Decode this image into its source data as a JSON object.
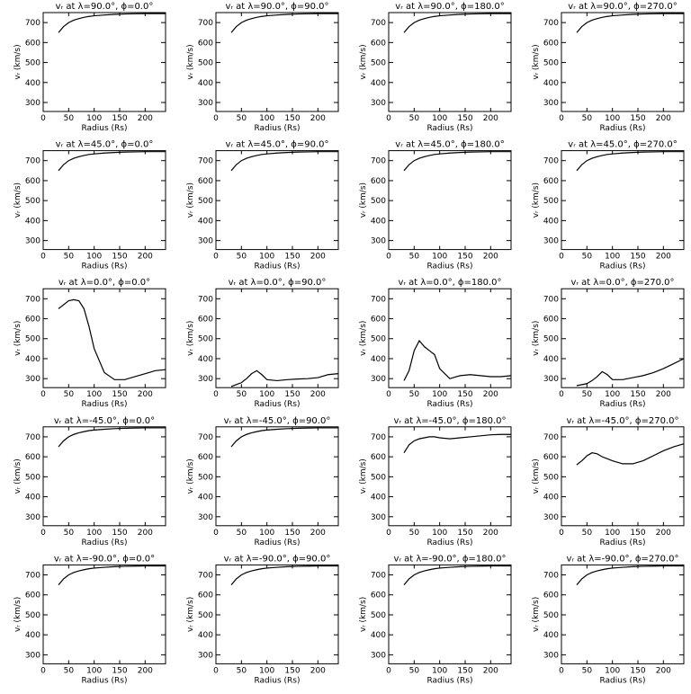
{
  "chart_data": [
    {
      "type": "line",
      "title": "vᵣ at λ=90.0°, ϕ=0.0°",
      "xlabel": "Radius (Rs)",
      "ylabel": "vᵣ (km/s)",
      "x": [
        30,
        40,
        50,
        60,
        70,
        80,
        90,
        100,
        120,
        140,
        160,
        180,
        200,
        220,
        240
      ],
      "values": [
        650,
        680,
        700,
        712,
        720,
        726,
        731,
        734,
        738,
        741,
        743,
        744,
        745,
        745,
        745
      ],
      "xlim": [
        0,
        240
      ],
      "ylim": [
        255,
        750
      ],
      "xticks": [
        0,
        50,
        100,
        150,
        200
      ],
      "yticks": [
        300,
        400,
        500,
        600,
        700
      ],
      "color": "#000000"
    },
    {
      "type": "line",
      "title": "vᵣ at λ=90.0°, ϕ=90.0°",
      "xlabel": "Radius (Rs)",
      "ylabel": "vᵣ (km/s)",
      "x": [
        30,
        40,
        50,
        60,
        70,
        80,
        90,
        100,
        120,
        140,
        160,
        180,
        200,
        220,
        240
      ],
      "values": [
        650,
        680,
        700,
        712,
        720,
        726,
        731,
        734,
        738,
        741,
        743,
        744,
        745,
        745,
        745
      ],
      "xlim": [
        0,
        240
      ],
      "ylim": [
        255,
        750
      ],
      "xticks": [
        0,
        50,
        100,
        150,
        200
      ],
      "yticks": [
        300,
        400,
        500,
        600,
        700
      ],
      "color": "#000000"
    },
    {
      "type": "line",
      "title": "vᵣ at λ=90.0°, ϕ=180.0°",
      "xlabel": "Radius (Rs)",
      "ylabel": "vᵣ (km/s)",
      "x": [
        30,
        40,
        50,
        60,
        70,
        80,
        90,
        100,
        120,
        140,
        160,
        180,
        200,
        220,
        240
      ],
      "values": [
        650,
        680,
        700,
        712,
        720,
        726,
        731,
        734,
        738,
        741,
        743,
        744,
        745,
        745,
        745
      ],
      "xlim": [
        0,
        240
      ],
      "ylim": [
        255,
        750
      ],
      "xticks": [
        0,
        50,
        100,
        150,
        200
      ],
      "yticks": [
        300,
        400,
        500,
        600,
        700
      ],
      "color": "#000000"
    },
    {
      "type": "line",
      "title": "vᵣ at λ=90.0°, ϕ=270.0°",
      "xlabel": "Radius (Rs)",
      "ylabel": "vᵣ (km/s)",
      "x": [
        30,
        40,
        50,
        60,
        70,
        80,
        90,
        100,
        120,
        140,
        160,
        180,
        200,
        220,
        240
      ],
      "values": [
        650,
        680,
        700,
        712,
        720,
        726,
        731,
        734,
        738,
        741,
        743,
        744,
        745,
        745,
        745
      ],
      "xlim": [
        0,
        240
      ],
      "ylim": [
        255,
        750
      ],
      "xticks": [
        0,
        50,
        100,
        150,
        200
      ],
      "yticks": [
        300,
        400,
        500,
        600,
        700
      ],
      "color": "#000000"
    },
    {
      "type": "line",
      "title": "vᵣ at λ=45.0°, ϕ=0.0°",
      "xlabel": "Radius (Rs)",
      "ylabel": "vᵣ (km/s)",
      "x": [
        30,
        40,
        50,
        60,
        70,
        80,
        90,
        100,
        120,
        140,
        160,
        180,
        200,
        220,
        240
      ],
      "values": [
        650,
        680,
        700,
        712,
        720,
        726,
        731,
        734,
        738,
        741,
        743,
        744,
        745,
        745,
        745
      ],
      "xlim": [
        0,
        240
      ],
      "ylim": [
        255,
        750
      ],
      "xticks": [
        0,
        50,
        100,
        150,
        200
      ],
      "yticks": [
        300,
        400,
        500,
        600,
        700
      ],
      "color": "#000000"
    },
    {
      "type": "line",
      "title": "vᵣ at λ=45.0°, ϕ=90.0°",
      "xlabel": "Radius (Rs)",
      "ylabel": "vᵣ (km/s)",
      "x": [
        30,
        40,
        50,
        60,
        70,
        80,
        90,
        100,
        120,
        140,
        160,
        180,
        200,
        220,
        240
      ],
      "values": [
        650,
        680,
        700,
        712,
        720,
        726,
        731,
        734,
        738,
        741,
        743,
        744,
        745,
        745,
        745
      ],
      "xlim": [
        0,
        240
      ],
      "ylim": [
        255,
        750
      ],
      "xticks": [
        0,
        50,
        100,
        150,
        200
      ],
      "yticks": [
        300,
        400,
        500,
        600,
        700
      ],
      "color": "#000000"
    },
    {
      "type": "line",
      "title": "vᵣ at λ=45.0°, ϕ=180.0°",
      "xlabel": "Radius (Rs)",
      "ylabel": "vᵣ (km/s)",
      "x": [
        30,
        40,
        50,
        60,
        70,
        80,
        90,
        100,
        120,
        140,
        160,
        180,
        200,
        220,
        240
      ],
      "values": [
        650,
        680,
        700,
        712,
        720,
        726,
        731,
        734,
        738,
        741,
        743,
        744,
        745,
        745,
        745
      ],
      "xlim": [
        0,
        240
      ],
      "ylim": [
        255,
        750
      ],
      "xticks": [
        0,
        50,
        100,
        150,
        200
      ],
      "yticks": [
        300,
        400,
        500,
        600,
        700
      ],
      "color": "#000000"
    },
    {
      "type": "line",
      "title": "vᵣ at λ=45.0°, ϕ=270.0°",
      "xlabel": "Radius (Rs)",
      "ylabel": "vᵣ (km/s)",
      "x": [
        30,
        40,
        50,
        60,
        70,
        80,
        90,
        100,
        120,
        140,
        160,
        180,
        200,
        220,
        240
      ],
      "values": [
        650,
        680,
        700,
        712,
        720,
        726,
        731,
        734,
        738,
        741,
        743,
        744,
        745,
        745,
        745
      ],
      "xlim": [
        0,
        240
      ],
      "ylim": [
        255,
        750
      ],
      "xticks": [
        0,
        50,
        100,
        150,
        200
      ],
      "yticks": [
        300,
        400,
        500,
        600,
        700
      ],
      "color": "#000000"
    },
    {
      "type": "line",
      "title": "vᵣ at λ=0.0°, ϕ=0.0°",
      "xlabel": "Radius (Rs)",
      "ylabel": "vᵣ (km/s)",
      "x": [
        30,
        40,
        50,
        60,
        70,
        80,
        90,
        100,
        120,
        140,
        160,
        180,
        200,
        220,
        240
      ],
      "values": [
        650,
        670,
        690,
        695,
        690,
        650,
        560,
        450,
        330,
        295,
        295,
        310,
        325,
        340,
        345
      ],
      "xlim": [
        0,
        240
      ],
      "ylim": [
        255,
        750
      ],
      "xticks": [
        0,
        50,
        100,
        150,
        200
      ],
      "yticks": [
        300,
        400,
        500,
        600,
        700
      ],
      "color": "#000000"
    },
    {
      "type": "line",
      "title": "vᵣ at λ=0.0°, ϕ=90.0°",
      "xlabel": "Radius (Rs)",
      "ylabel": "vᵣ (km/s)",
      "x": [
        30,
        40,
        50,
        60,
        70,
        80,
        90,
        100,
        120,
        140,
        160,
        180,
        200,
        220,
        240
      ],
      "values": [
        260,
        270,
        280,
        300,
        325,
        340,
        320,
        295,
        290,
        295,
        298,
        300,
        305,
        320,
        325
      ],
      "xlim": [
        0,
        240
      ],
      "ylim": [
        255,
        750
      ],
      "xticks": [
        0,
        50,
        100,
        150,
        200
      ],
      "yticks": [
        300,
        400,
        500,
        600,
        700
      ],
      "color": "#000000"
    },
    {
      "type": "line",
      "title": "vᵣ at λ=0.0°, ϕ=180.0°",
      "xlabel": "Radius (Rs)",
      "ylabel": "vᵣ (km/s)",
      "x": [
        30,
        40,
        50,
        60,
        70,
        80,
        90,
        100,
        120,
        140,
        160,
        180,
        200,
        220,
        240
      ],
      "values": [
        290,
        340,
        440,
        490,
        460,
        440,
        420,
        350,
        300,
        315,
        320,
        315,
        310,
        310,
        315
      ],
      "xlim": [
        0,
        240
      ],
      "ylim": [
        255,
        750
      ],
      "xticks": [
        0,
        50,
        100,
        150,
        200
      ],
      "yticks": [
        300,
        400,
        500,
        600,
        700
      ],
      "color": "#000000"
    },
    {
      "type": "line",
      "title": "vᵣ at λ=0.0°, ϕ=270.0°",
      "xlabel": "Radius (Rs)",
      "ylabel": "vᵣ (km/s)",
      "x": [
        30,
        40,
        50,
        60,
        70,
        80,
        90,
        100,
        120,
        140,
        160,
        180,
        200,
        220,
        240
      ],
      "values": [
        265,
        270,
        275,
        290,
        310,
        335,
        320,
        295,
        295,
        305,
        315,
        330,
        350,
        375,
        400
      ],
      "xlim": [
        0,
        240
      ],
      "ylim": [
        255,
        750
      ],
      "xticks": [
        0,
        50,
        100,
        150,
        200
      ],
      "yticks": [
        300,
        400,
        500,
        600,
        700
      ],
      "color": "#000000"
    },
    {
      "type": "line",
      "title": "vᵣ at λ=-45.0°, ϕ=0.0°",
      "xlabel": "Radius (Rs)",
      "ylabel": "vᵣ (km/s)",
      "x": [
        30,
        40,
        50,
        60,
        70,
        80,
        90,
        100,
        120,
        140,
        160,
        180,
        200,
        220,
        240
      ],
      "values": [
        650,
        680,
        700,
        712,
        720,
        726,
        731,
        734,
        738,
        741,
        743,
        744,
        745,
        745,
        745
      ],
      "xlim": [
        0,
        240
      ],
      "ylim": [
        255,
        750
      ],
      "xticks": [
        0,
        50,
        100,
        150,
        200
      ],
      "yticks": [
        300,
        400,
        500,
        600,
        700
      ],
      "color": "#000000"
    },
    {
      "type": "line",
      "title": "vᵣ at λ=-45.0°, ϕ=90.0°",
      "xlabel": "Radius (Rs)",
      "ylabel": "vᵣ (km/s)",
      "x": [
        30,
        40,
        50,
        60,
        70,
        80,
        90,
        100,
        120,
        140,
        160,
        180,
        200,
        220,
        240
      ],
      "values": [
        650,
        680,
        700,
        712,
        720,
        726,
        731,
        734,
        738,
        741,
        743,
        744,
        745,
        745,
        745
      ],
      "xlim": [
        0,
        240
      ],
      "ylim": [
        255,
        750
      ],
      "xticks": [
        0,
        50,
        100,
        150,
        200
      ],
      "yticks": [
        300,
        400,
        500,
        600,
        700
      ],
      "color": "#000000"
    },
    {
      "type": "line",
      "title": "vᵣ at λ=-45.0°, ϕ=180.0°",
      "xlabel": "Radius (Rs)",
      "ylabel": "vᵣ (km/s)",
      "x": [
        30,
        40,
        50,
        60,
        70,
        80,
        90,
        100,
        120,
        140,
        160,
        180,
        200,
        220,
        240
      ],
      "values": [
        620,
        660,
        680,
        690,
        695,
        700,
        700,
        695,
        690,
        695,
        700,
        705,
        710,
        712,
        712
      ],
      "xlim": [
        0,
        240
      ],
      "ylim": [
        255,
        750
      ],
      "xticks": [
        0,
        50,
        100,
        150,
        200
      ],
      "yticks": [
        300,
        400,
        500,
        600,
        700
      ],
      "color": "#000000"
    },
    {
      "type": "line",
      "title": "vᵣ at λ=-45.0°, ϕ=270.0°",
      "xlabel": "Radius (Rs)",
      "ylabel": "vᵣ (km/s)",
      "x": [
        30,
        40,
        50,
        60,
        70,
        80,
        90,
        100,
        120,
        140,
        160,
        180,
        200,
        220,
        240
      ],
      "values": [
        560,
        580,
        605,
        620,
        615,
        600,
        590,
        580,
        565,
        565,
        580,
        605,
        630,
        650,
        665
      ],
      "xlim": [
        0,
        240
      ],
      "ylim": [
        255,
        750
      ],
      "xticks": [
        0,
        50,
        100,
        150,
        200
      ],
      "yticks": [
        300,
        400,
        500,
        600,
        700
      ],
      "color": "#000000"
    },
    {
      "type": "line",
      "title": "vᵣ at λ=-90.0°, ϕ=0.0°",
      "xlabel": "Radius (Rs)",
      "ylabel": "vᵣ (km/s)",
      "x": [
        30,
        40,
        50,
        60,
        70,
        80,
        90,
        100,
        120,
        140,
        160,
        180,
        200,
        220,
        240
      ],
      "values": [
        650,
        680,
        700,
        712,
        720,
        726,
        731,
        734,
        738,
        741,
        743,
        744,
        745,
        745,
        745
      ],
      "xlim": [
        0,
        240
      ],
      "ylim": [
        255,
        750
      ],
      "xticks": [
        0,
        50,
        100,
        150,
        200
      ],
      "yticks": [
        300,
        400,
        500,
        600,
        700
      ],
      "color": "#000000"
    },
    {
      "type": "line",
      "title": "vᵣ at λ=-90.0°, ϕ=90.0°",
      "xlabel": "Radius (Rs)",
      "ylabel": "vᵣ (km/s)",
      "x": [
        30,
        40,
        50,
        60,
        70,
        80,
        90,
        100,
        120,
        140,
        160,
        180,
        200,
        220,
        240
      ],
      "values": [
        650,
        680,
        700,
        712,
        720,
        726,
        731,
        734,
        738,
        741,
        743,
        744,
        745,
        745,
        745
      ],
      "xlim": [
        0,
        240
      ],
      "ylim": [
        255,
        750
      ],
      "xticks": [
        0,
        50,
        100,
        150,
        200
      ],
      "yticks": [
        300,
        400,
        500,
        600,
        700
      ],
      "color": "#000000"
    },
    {
      "type": "line",
      "title": "vᵣ at λ=-90.0°, ϕ=180.0°",
      "xlabel": "Radius (Rs)",
      "ylabel": "vᵣ (km/s)",
      "x": [
        30,
        40,
        50,
        60,
        70,
        80,
        90,
        100,
        120,
        140,
        160,
        180,
        200,
        220,
        240
      ],
      "values": [
        650,
        680,
        700,
        712,
        720,
        726,
        731,
        734,
        738,
        741,
        743,
        744,
        745,
        745,
        745
      ],
      "xlim": [
        0,
        240
      ],
      "ylim": [
        255,
        750
      ],
      "xticks": [
        0,
        50,
        100,
        150,
        200
      ],
      "yticks": [
        300,
        400,
        500,
        600,
        700
      ],
      "color": "#000000"
    },
    {
      "type": "line",
      "title": "vᵣ at λ=-90.0°, ϕ=270.0°",
      "xlabel": "Radius (Rs)",
      "ylabel": "vᵣ (km/s)",
      "x": [
        30,
        40,
        50,
        60,
        70,
        80,
        90,
        100,
        120,
        140,
        160,
        180,
        200,
        220,
        240
      ],
      "values": [
        650,
        680,
        700,
        712,
        720,
        726,
        731,
        734,
        738,
        741,
        743,
        744,
        745,
        745,
        745
      ],
      "xlim": [
        0,
        240
      ],
      "ylim": [
        255,
        750
      ],
      "xticks": [
        0,
        50,
        100,
        150,
        200
      ],
      "yticks": [
        300,
        400,
        500,
        600,
        700
      ],
      "color": "#000000"
    }
  ]
}
